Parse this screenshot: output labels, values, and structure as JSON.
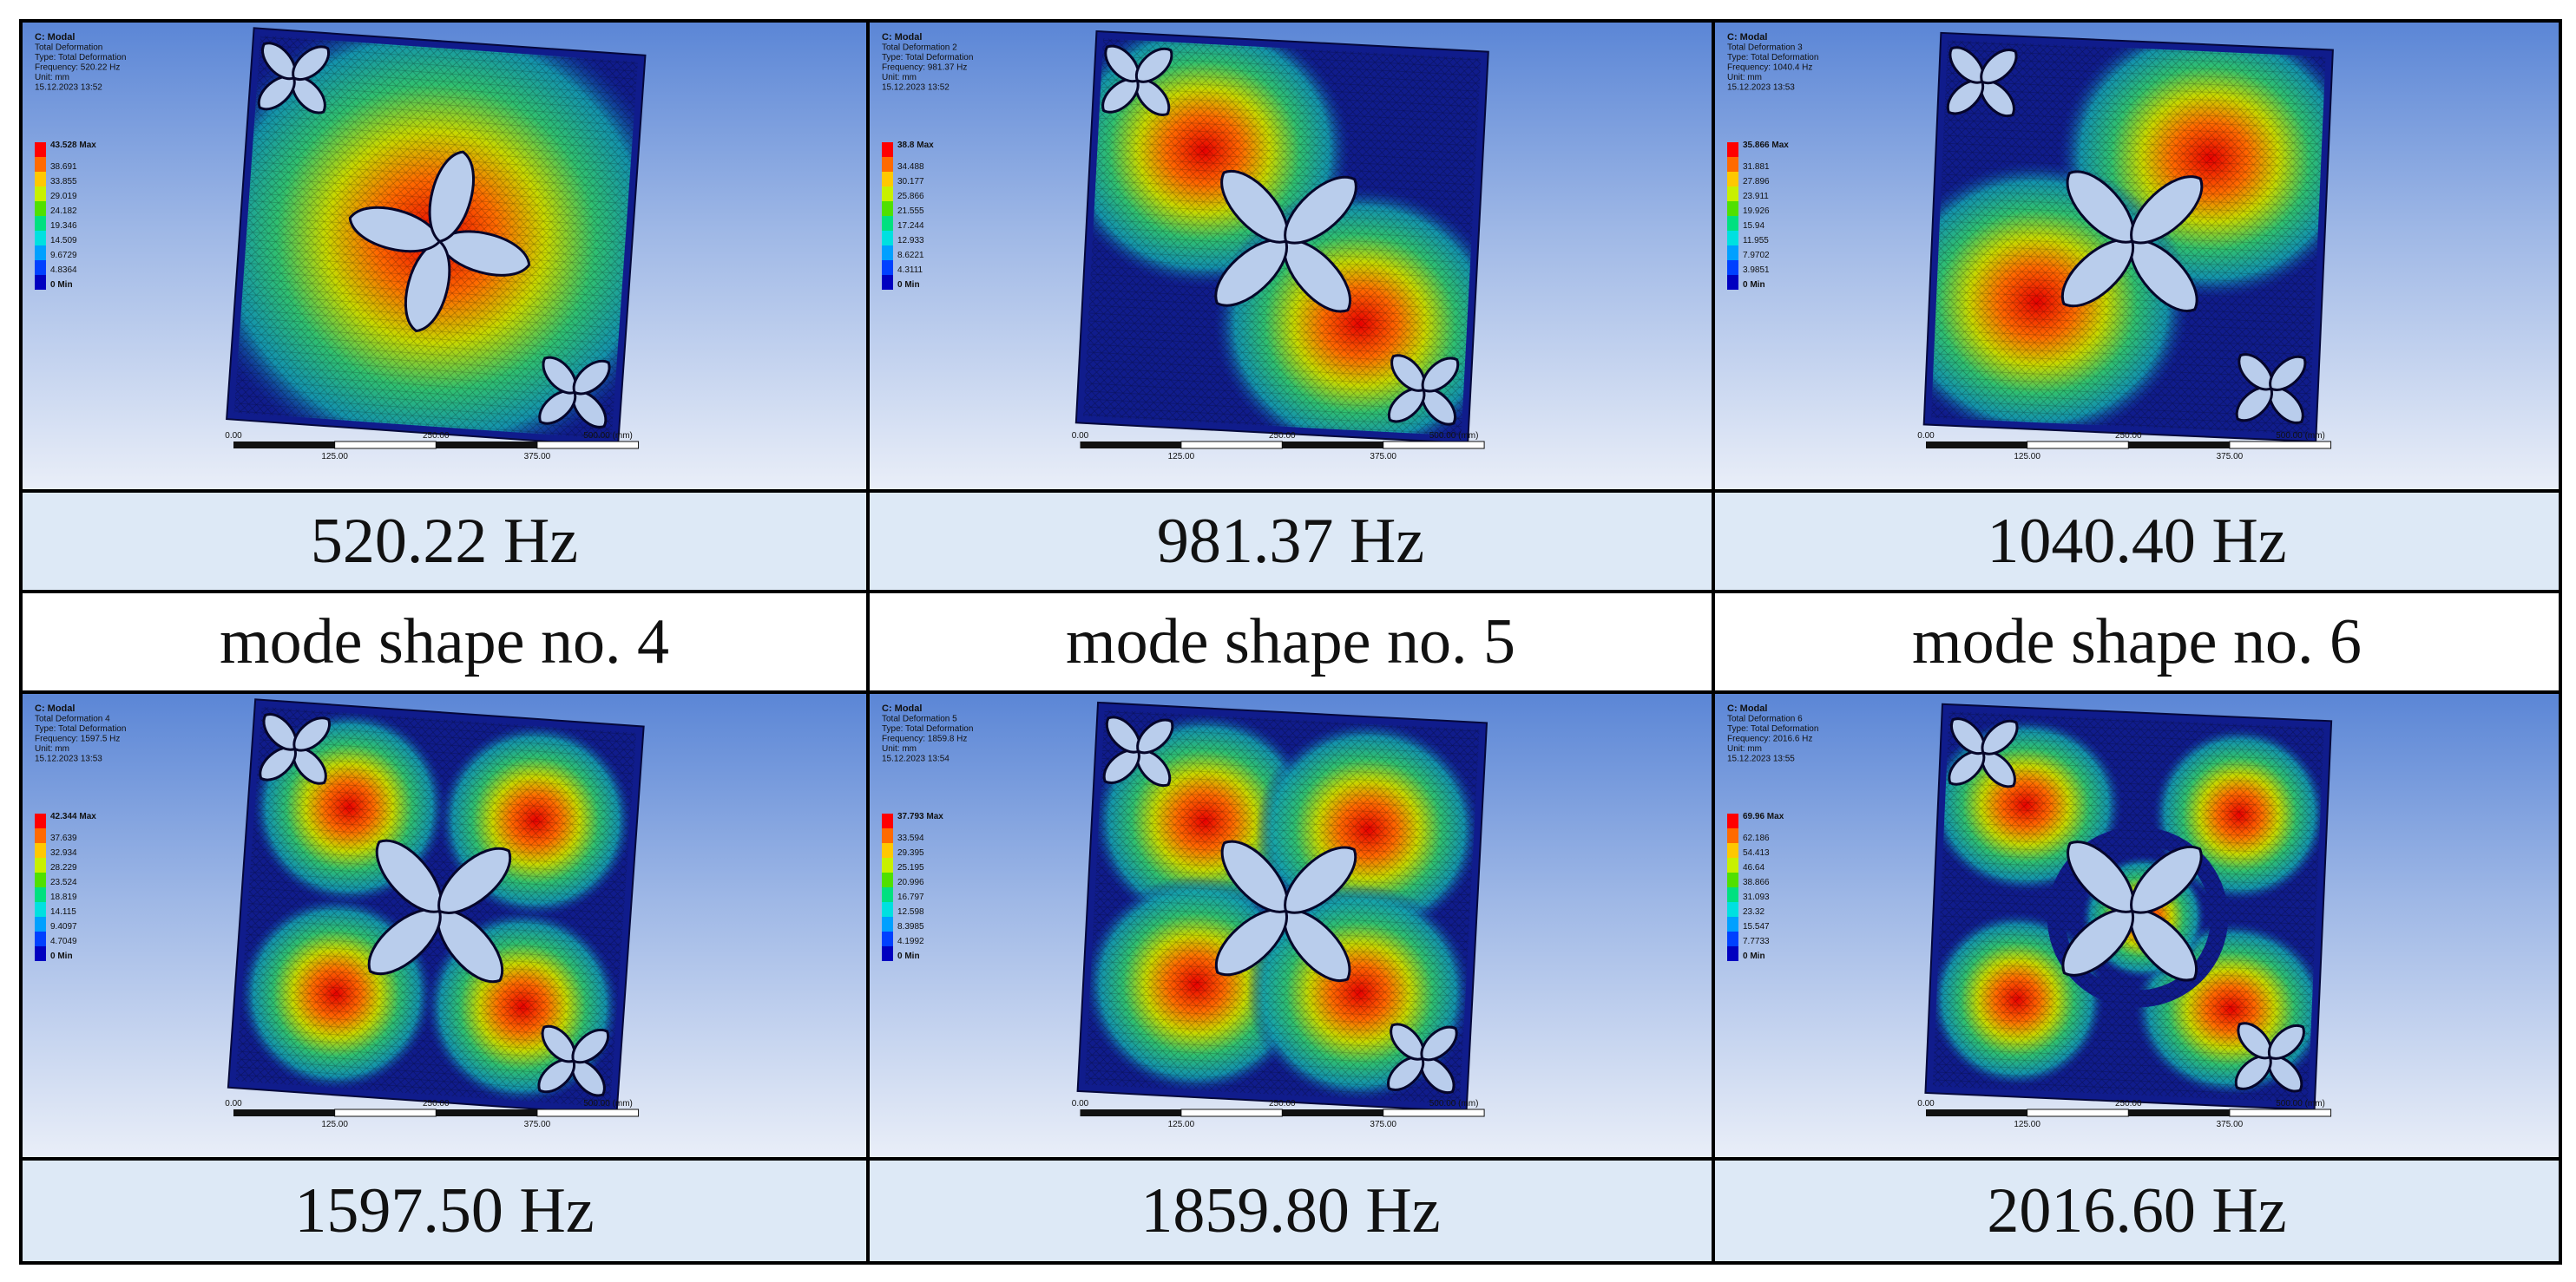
{
  "panels": [
    {
      "header": [
        "C: Modal",
        "Total Deformation",
        "Type: Total Deformation",
        "Frequency: 520.22 Hz",
        "Unit: mm",
        "15.12.2023 13:52"
      ],
      "legend": [
        "43.528 Max",
        "38.691",
        "33.855",
        "29.019",
        "24.182",
        "19.346",
        "14.509",
        "9.6729",
        "4.8364",
        "0 Min"
      ],
      "frequency": "520.22 Hz",
      "mode": "mode shape no. 4",
      "pattern": "center"
    },
    {
      "header": [
        "C: Modal",
        "Total Deformation 2",
        "Type: Total Deformation",
        "Frequency: 981.37 Hz",
        "Unit: mm",
        "15.12.2023 13:52"
      ],
      "legend": [
        "38.8 Max",
        "34.488",
        "30.177",
        "25.866",
        "21.555",
        "17.244",
        "12.933",
        "8.6221",
        "4.3111",
        "0 Min"
      ],
      "frequency": "981.37 Hz",
      "mode": "mode shape no. 5",
      "pattern": "diagonal"
    },
    {
      "header": [
        "C: Modal",
        "Total Deformation 3",
        "Type: Total Deformation",
        "Frequency: 1040.4 Hz",
        "Unit: mm",
        "15.12.2023 13:53"
      ],
      "legend": [
        "35.866 Max",
        "31.881",
        "27.896",
        "23.911",
        "19.926",
        "15.94",
        "11.955",
        "7.9702",
        "3.9851",
        "0 Min"
      ],
      "frequency": "1040.40 Hz",
      "mode": "mode shape no. 6",
      "pattern": "antidiagonal"
    },
    {
      "header": [
        "C: Modal",
        "Total Deformation 4",
        "Type: Total Deformation",
        "Frequency: 1597.5 Hz",
        "Unit: mm",
        "15.12.2023 13:53"
      ],
      "legend": [
        "42.344 Max",
        "37.639",
        "32.934",
        "28.229",
        "23.524",
        "18.819",
        "14.115",
        "9.4097",
        "4.7049",
        "0 Min"
      ],
      "frequency": "1597.50 Hz",
      "mode": "",
      "pattern": "quadrants"
    },
    {
      "header": [
        "C: Modal",
        "Total Deformation 5",
        "Type: Total Deformation",
        "Frequency: 1859.8 Hz",
        "Unit: mm",
        "15.12.2023 13:54"
      ],
      "legend": [
        "37.793 Max",
        "33.594",
        "29.395",
        "25.195",
        "20.996",
        "16.797",
        "12.598",
        "8.3985",
        "4.1992",
        "0 Min"
      ],
      "frequency": "1859.80 Hz",
      "mode": "",
      "pattern": "lobes"
    },
    {
      "header": [
        "C: Modal",
        "Total Deformation 6",
        "Type: Total Deformation",
        "Frequency: 2016.6 Hz",
        "Unit: mm",
        "15.12.2023 13:55"
      ],
      "legend": [
        "69.96 Max",
        "62.186",
        "54.413",
        "46.64",
        "38.866",
        "31.093",
        "23.32",
        "15.547",
        "7.7733",
        "0 Min"
      ],
      "frequency": "2016.60 Hz",
      "mode": "",
      "pattern": "ring"
    }
  ],
  "scale_bar": {
    "top_labels": [
      "0.00",
      "250.00",
      "500.00 (mm)"
    ],
    "bottom_labels": [
      "125.00",
      "375.00"
    ]
  },
  "legend_colors": [
    "#ff0000",
    "#ff6a00",
    "#ffc800",
    "#c8f000",
    "#50e000",
    "#00e080",
    "#00e0e0",
    "#00a0ff",
    "#0040ff",
    "#0000c0"
  ]
}
